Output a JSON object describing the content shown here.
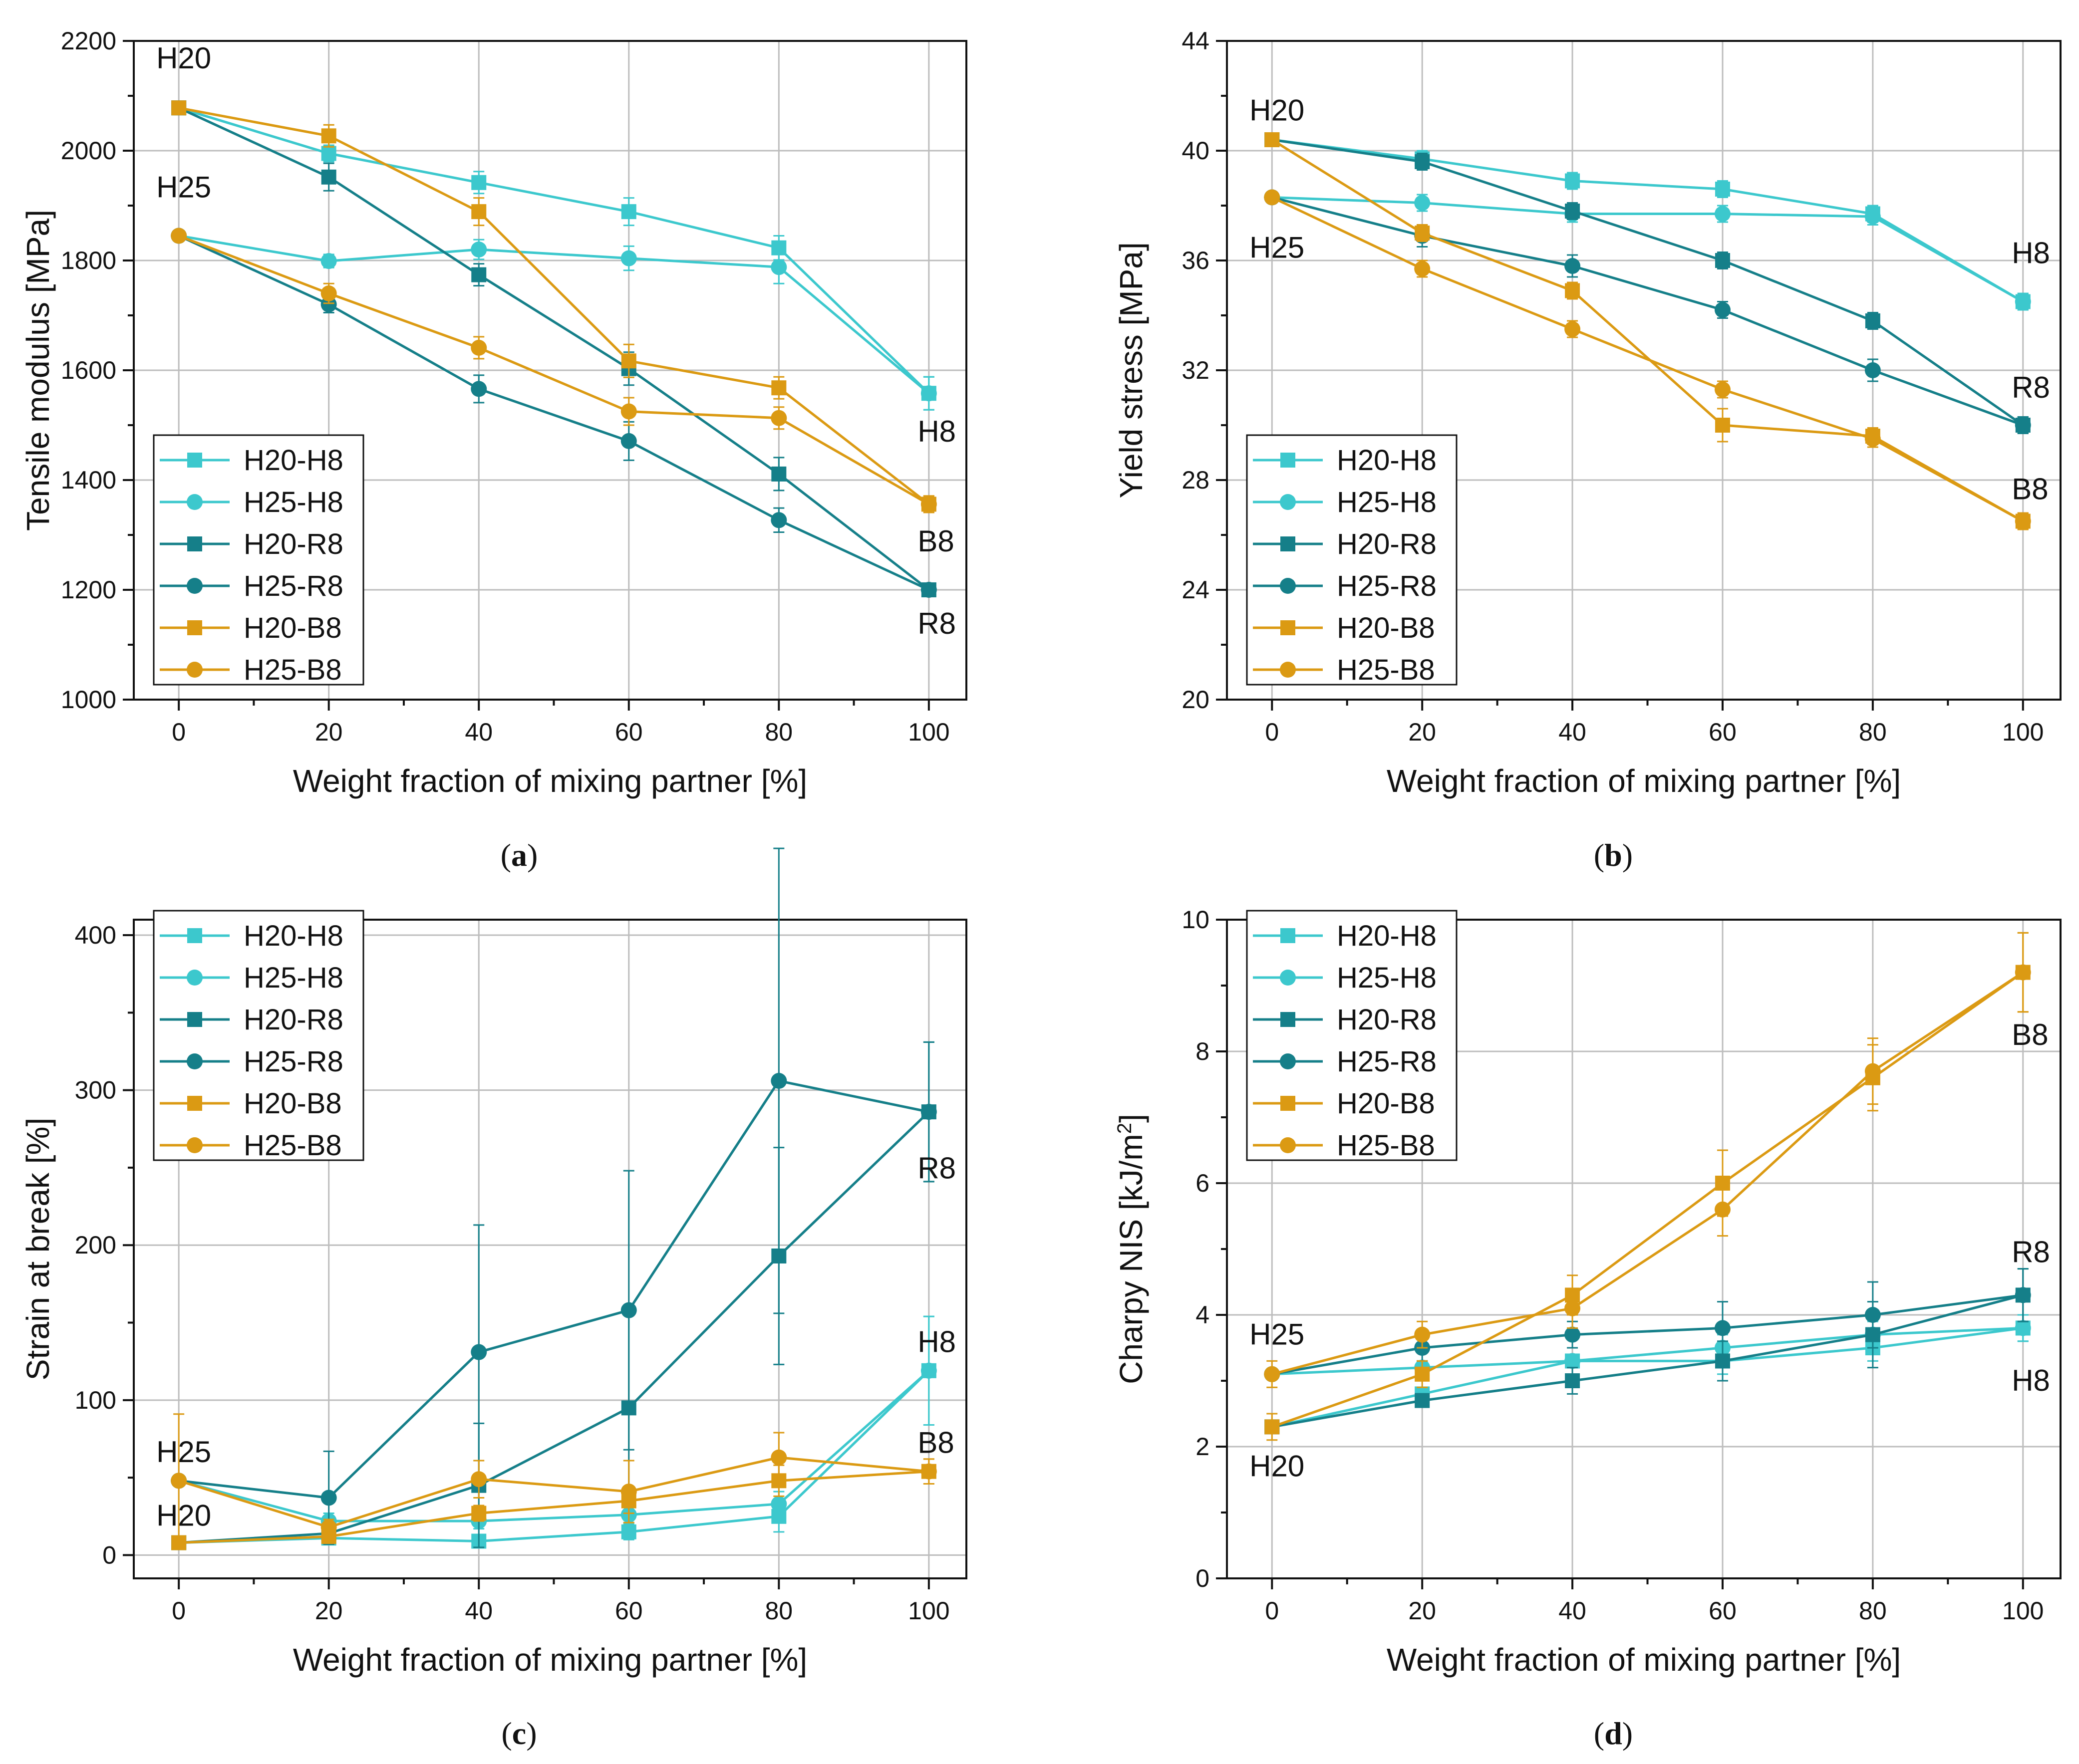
{
  "colors": {
    "h8": "#3CC8CD",
    "r8": "#157F89",
    "b8": "#DB9A13",
    "grid": "#BDBDBD",
    "axis": "#111111"
  },
  "chart_data": [
    {
      "type": "line",
      "panel_label": "(a)",
      "panel_letter": "a",
      "xlabel": "Weight fraction of mixing partner [%]",
      "ylabel": "Tensile modulus [MPa]",
      "x": [
        0,
        20,
        40,
        60,
        80,
        100
      ],
      "xlim": [
        -6,
        105
      ],
      "ylim": [
        1000,
        2200
      ],
      "xticks": [
        0,
        20,
        40,
        60,
        80,
        100
      ],
      "yticks": [
        1000,
        1200,
        1400,
        1600,
        1800,
        2000,
        2200
      ],
      "legend_position": "bottom-left",
      "series": [
        {
          "name": "H20-H8",
          "color": "h8",
          "marker": "square",
          "values": [
            2078,
            1995,
            1942,
            1889,
            1823,
            1558
          ],
          "errors": [
            0,
            15,
            20,
            25,
            22,
            30
          ]
        },
        {
          "name": "H25-H8",
          "color": "h8",
          "marker": "circle",
          "values": [
            1845,
            1799,
            1820,
            1804,
            1788,
            1558
          ],
          "errors": [
            0,
            12,
            18,
            22,
            30,
            30
          ]
        },
        {
          "name": "H20-R8",
          "color": "r8",
          "marker": "square",
          "values": [
            2078,
            1952,
            1774,
            1603,
            1411,
            1200
          ],
          "errors": [
            0,
            25,
            20,
            30,
            30,
            12
          ]
        },
        {
          "name": "H25-R8",
          "color": "r8",
          "marker": "circle",
          "values": [
            1845,
            1720,
            1566,
            1471,
            1327,
            1200
          ],
          "errors": [
            0,
            15,
            25,
            35,
            22,
            12
          ]
        },
        {
          "name": "H20-B8",
          "color": "b8",
          "marker": "square",
          "values": [
            2078,
            2027,
            1889,
            1617,
            1568,
            1356
          ],
          "errors": [
            0,
            20,
            25,
            30,
            20,
            15
          ]
        },
        {
          "name": "H25-B8",
          "color": "b8",
          "marker": "circle",
          "values": [
            1845,
            1740,
            1641,
            1525,
            1513,
            1356
          ],
          "errors": [
            0,
            18,
            20,
            25,
            20,
            15
          ]
        }
      ],
      "annotations": [
        {
          "text": "H20",
          "x": -3,
          "y": 2150
        },
        {
          "text": "H25",
          "x": -3,
          "y": 1915
        },
        {
          "text": "H8",
          "x": 98.5,
          "y": 1470
        },
        {
          "text": "B8",
          "x": 98.5,
          "y": 1270
        },
        {
          "text": "R8",
          "x": 98.5,
          "y": 1120
        }
      ]
    },
    {
      "type": "line",
      "panel_label": "(b)",
      "panel_letter": "b",
      "xlabel": "Weight fraction of mixing partner [%]",
      "ylabel": "Yield stress [MPa]",
      "x": [
        0,
        20,
        40,
        60,
        80,
        100
      ],
      "xlim": [
        -6,
        105
      ],
      "ylim": [
        20,
        44
      ],
      "xticks": [
        0,
        20,
        40,
        60,
        80,
        100
      ],
      "yticks": [
        20,
        24,
        28,
        32,
        36,
        40,
        44
      ],
      "legend_position": "bottom-left",
      "series": [
        {
          "name": "H20-H8",
          "color": "h8",
          "marker": "square",
          "values": [
            40.4,
            39.7,
            38.9,
            38.6,
            37.7,
            34.5
          ],
          "errors": [
            0,
            0.3,
            0.3,
            0.3,
            0.3,
            0.3
          ]
        },
        {
          "name": "H25-H8",
          "color": "h8",
          "marker": "circle",
          "values": [
            38.3,
            38.1,
            37.7,
            37.7,
            37.6,
            34.5
          ],
          "errors": [
            0,
            0.3,
            0.3,
            0.3,
            0.3,
            0.3
          ]
        },
        {
          "name": "H20-R8",
          "color": "r8",
          "marker": "square",
          "values": [
            40.4,
            39.6,
            37.8,
            36.0,
            33.8,
            30.0
          ],
          "errors": [
            0,
            0.3,
            0.3,
            0.3,
            0.3,
            0.3
          ]
        },
        {
          "name": "H25-R8",
          "color": "r8",
          "marker": "circle",
          "values": [
            38.3,
            36.9,
            35.8,
            34.2,
            32.0,
            30.0
          ],
          "errors": [
            0,
            0.4,
            0.4,
            0.3,
            0.4,
            0.3
          ]
        },
        {
          "name": "H20-B8",
          "color": "b8",
          "marker": "square",
          "values": [
            40.4,
            37.0,
            34.9,
            30.0,
            29.6,
            26.5
          ],
          "errors": [
            0,
            0.3,
            0.3,
            0.6,
            0.3,
            0.3
          ]
        },
        {
          "name": "H25-B8",
          "color": "b8",
          "marker": "circle",
          "values": [
            38.3,
            35.7,
            33.5,
            31.3,
            29.5,
            26.5
          ],
          "errors": [
            0,
            0.3,
            0.3,
            0.3,
            0.3,
            0.3
          ]
        }
      ],
      "annotations": [
        {
          "text": "H20",
          "x": -3,
          "y": 41.1
        },
        {
          "text": "H25",
          "x": -3,
          "y": 36.1
        },
        {
          "text": "H8",
          "x": 98.5,
          "y": 35.9
        },
        {
          "text": "R8",
          "x": 98.5,
          "y": 31.0
        },
        {
          "text": "B8",
          "x": 98.5,
          "y": 27.3
        }
      ]
    },
    {
      "type": "line",
      "panel_label": "(c)",
      "panel_letter": "c",
      "xlabel": "Weight fraction of mixing partner [%]",
      "ylabel": "Strain at break [%]",
      "x": [
        0,
        20,
        40,
        60,
        80,
        100
      ],
      "xlim": [
        -6,
        105
      ],
      "ylim": [
        -15,
        410
      ],
      "xticks": [
        0,
        20,
        40,
        60,
        80,
        100
      ],
      "yticks": [
        0,
        100,
        200,
        300,
        400
      ],
      "legend_position": "top-left",
      "series": [
        {
          "name": "H20-H8",
          "color": "h8",
          "marker": "square",
          "values": [
            8,
            11,
            9,
            15,
            25,
            119
          ],
          "errors": [
            0,
            3,
            3,
            5,
            10,
            35
          ]
        },
        {
          "name": "H25-H8",
          "color": "h8",
          "marker": "circle",
          "values": [
            48,
            22,
            22,
            26,
            33,
            119
          ],
          "errors": [
            0,
            5,
            5,
            5,
            8,
            35
          ]
        },
        {
          "name": "H20-R8",
          "color": "r8",
          "marker": "square",
          "values": [
            8,
            14,
            45,
            95,
            193,
            286
          ],
          "errors": [
            0,
            5,
            40,
            60,
            70,
            45
          ]
        },
        {
          "name": "H25-R8",
          "color": "r8",
          "marker": "circle",
          "values": [
            48,
            37,
            131,
            158,
            306,
            286
          ],
          "errors": [
            0,
            30,
            82,
            90,
            150,
            45
          ]
        },
        {
          "name": "H20-B8",
          "color": "b8",
          "marker": "square",
          "values": [
            8,
            12,
            27,
            35,
            48,
            54
          ],
          "errors": [
            0,
            3,
            5,
            8,
            10,
            8
          ]
        },
        {
          "name": "H25-B8",
          "color": "b8",
          "marker": "circle",
          "values": [
            48,
            18,
            49,
            41,
            63,
            54
          ],
          "errors": [
            43,
            5,
            12,
            20,
            16,
            8
          ]
        }
      ],
      "annotations": [
        {
          "text": "H25",
          "x": -3,
          "y": 60
        },
        {
          "text": "H20",
          "x": -3,
          "y": 19
        },
        {
          "text": "R8",
          "x": 98.5,
          "y": 243
        },
        {
          "text": "H8",
          "x": 98.5,
          "y": 131
        },
        {
          "text": "B8",
          "x": 98.5,
          "y": 66
        }
      ]
    },
    {
      "type": "line",
      "panel_label": "(d)",
      "panel_letter": "d",
      "xlabel": "Weight fraction of mixing partner [%]",
      "ylabel": "Charpy NIS [kJ/m²]",
      "ylabel_main": "Charpy NIS [kJ/m",
      "ylabel_sup": "2",
      "ylabel_end": "]",
      "x": [
        0,
        20,
        40,
        60,
        80,
        100
      ],
      "xlim": [
        -6,
        105
      ],
      "ylim": [
        0,
        10
      ],
      "xticks": [
        0,
        20,
        40,
        60,
        80,
        100
      ],
      "yticks": [
        0,
        2,
        4,
        6,
        8,
        10
      ],
      "legend_position": "top-left",
      "series": [
        {
          "name": "H20-H8",
          "color": "h8",
          "marker": "square",
          "values": [
            2.3,
            2.8,
            3.3,
            3.3,
            3.5,
            3.8
          ],
          "errors": [
            0,
            0.1,
            0.1,
            0.2,
            0.2,
            0.2
          ]
        },
        {
          "name": "H25-H8",
          "color": "h8",
          "marker": "circle",
          "values": [
            3.1,
            3.2,
            3.3,
            3.5,
            3.7,
            3.8
          ],
          "errors": [
            0,
            0.1,
            0.1,
            0.2,
            0.2,
            0.2
          ]
        },
        {
          "name": "H20-R8",
          "color": "r8",
          "marker": "square",
          "values": [
            2.3,
            2.7,
            3.0,
            3.3,
            3.7,
            4.3
          ],
          "errors": [
            0,
            0.1,
            0.2,
            0.3,
            0.5,
            0.4
          ]
        },
        {
          "name": "H25-R8",
          "color": "r8",
          "marker": "circle",
          "values": [
            3.1,
            3.5,
            3.7,
            3.8,
            4.0,
            4.3
          ],
          "errors": [
            0,
            0.2,
            0.2,
            0.4,
            0.5,
            0.4
          ]
        },
        {
          "name": "H20-B8",
          "color": "b8",
          "marker": "square",
          "values": [
            2.3,
            3.1,
            4.3,
            6.0,
            7.6,
            9.2
          ],
          "errors": [
            0.2,
            0.2,
            0.3,
            0.5,
            0.5,
            0.6
          ]
        },
        {
          "name": "H25-B8",
          "color": "b8",
          "marker": "circle",
          "values": [
            3.1,
            3.7,
            4.1,
            5.6,
            7.7,
            9.2
          ],
          "errors": [
            0.2,
            0.2,
            0.3,
            0.4,
            0.5,
            0.6
          ]
        }
      ],
      "annotations": [
        {
          "text": "B8",
          "x": 98.5,
          "y": 8.1
        },
        {
          "text": "R8",
          "x": 98.5,
          "y": 4.8
        },
        {
          "text": "H25",
          "x": -3,
          "y": 3.55
        },
        {
          "text": "H8",
          "x": 98.5,
          "y": 2.85
        },
        {
          "text": "H20",
          "x": -3,
          "y": 1.55
        }
      ]
    }
  ]
}
